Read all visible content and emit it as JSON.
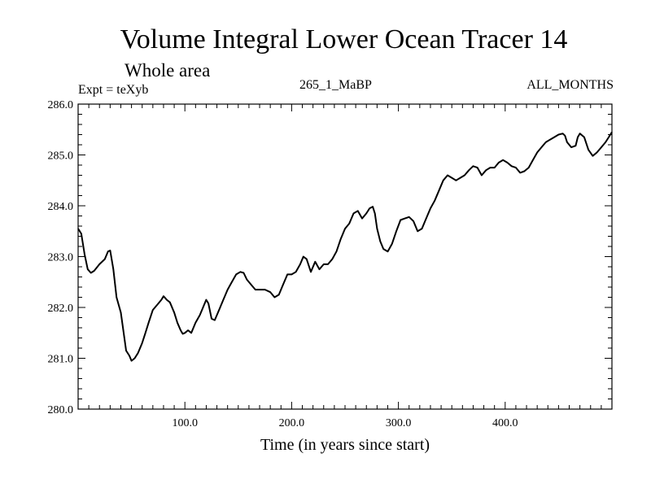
{
  "header": {
    "title": "Volume Integral Lower Ocean Tracer 14",
    "subtitle": "Whole area",
    "expt": "Expt = teXyb",
    "run": "265_1_MaBP",
    "months": "ALL_MONTHS"
  },
  "chart_data": {
    "type": "line",
    "title": "Volume Integral Lower Ocean Tracer 14",
    "subtitle": "Whole area",
    "xlabel": "Time (in years since start)",
    "ylabel": "",
    "xlim": [
      0,
      500
    ],
    "ylim": [
      280.0,
      286.0
    ],
    "x_ticks": [
      100,
      200,
      300,
      400
    ],
    "x_tick_labels": [
      "100.0",
      "200.0",
      "300.0",
      "400.0"
    ],
    "y_ticks": [
      280,
      281,
      282,
      283,
      284,
      285,
      286
    ],
    "y_tick_labels": [
      "280.0",
      "281.0",
      "282.0",
      "283.0",
      "284.0",
      "285.0",
      "286.0"
    ],
    "grid": false,
    "series": [
      {
        "x": [
          0,
          3,
          6,
          9,
          12,
          15,
          20,
          25,
          28,
          30,
          33,
          36,
          40,
          42,
          45,
          48,
          50,
          53,
          56,
          60,
          63,
          66,
          70,
          74,
          78,
          80,
          83,
          86,
          90,
          93,
          96,
          98,
          100,
          103,
          106,
          110,
          114,
          118,
          120,
          122,
          125,
          128,
          132,
          136,
          140,
          144,
          148,
          152,
          155,
          158,
          162,
          166,
          170,
          175,
          180,
          184,
          188,
          192,
          196,
          200,
          204,
          208,
          211,
          214,
          218,
          222,
          226,
          230,
          234,
          238,
          242,
          246,
          250,
          254,
          258,
          262,
          266,
          270,
          273,
          276,
          278,
          280,
          283,
          286,
          290,
          294,
          298,
          302,
          306,
          310,
          314,
          318,
          322,
          326,
          330,
          334,
          338,
          342,
          346,
          350,
          354,
          358,
          362,
          366,
          370,
          374,
          378,
          382,
          386,
          390,
          394,
          398,
          402,
          406,
          410,
          414,
          418,
          422,
          426,
          430,
          434,
          438,
          442,
          446,
          450,
          454,
          456,
          458,
          462,
          466,
          468,
          470,
          474,
          478,
          482,
          486,
          490,
          494,
          497,
          500
        ],
        "y": [
          283.55,
          283.45,
          283.05,
          282.75,
          282.68,
          282.72,
          282.85,
          282.95,
          283.1,
          283.12,
          282.75,
          282.2,
          281.9,
          281.6,
          281.15,
          281.05,
          280.95,
          281.0,
          281.1,
          281.3,
          281.5,
          281.7,
          281.95,
          282.05,
          282.15,
          282.22,
          282.15,
          282.1,
          281.9,
          281.7,
          281.55,
          281.48,
          281.5,
          281.55,
          281.5,
          281.7,
          281.85,
          282.05,
          282.15,
          282.08,
          281.78,
          281.75,
          281.95,
          282.15,
          282.35,
          282.5,
          282.65,
          282.7,
          282.68,
          282.55,
          282.45,
          282.35,
          282.35,
          282.35,
          282.3,
          282.2,
          282.25,
          282.45,
          282.65,
          282.65,
          282.7,
          282.85,
          283.0,
          282.95,
          282.7,
          282.9,
          282.75,
          282.85,
          282.85,
          282.95,
          283.1,
          283.35,
          283.55,
          283.65,
          283.85,
          283.9,
          283.75,
          283.85,
          283.95,
          283.98,
          283.85,
          283.55,
          283.3,
          283.15,
          283.1,
          283.25,
          283.5,
          283.72,
          283.75,
          283.78,
          283.7,
          283.5,
          283.55,
          283.75,
          283.95,
          284.1,
          284.3,
          284.5,
          284.6,
          284.55,
          284.5,
          284.55,
          284.6,
          284.7,
          284.78,
          284.75,
          284.6,
          284.7,
          284.75,
          284.75,
          284.85,
          284.9,
          284.85,
          284.78,
          284.75,
          284.65,
          284.68,
          284.75,
          284.9,
          285.05,
          285.15,
          285.25,
          285.3,
          285.35,
          285.4,
          285.42,
          285.38,
          285.25,
          285.15,
          285.18,
          285.35,
          285.42,
          285.35,
          285.1,
          284.98,
          285.05,
          285.15,
          285.25,
          285.35,
          285.45
        ]
      }
    ]
  }
}
